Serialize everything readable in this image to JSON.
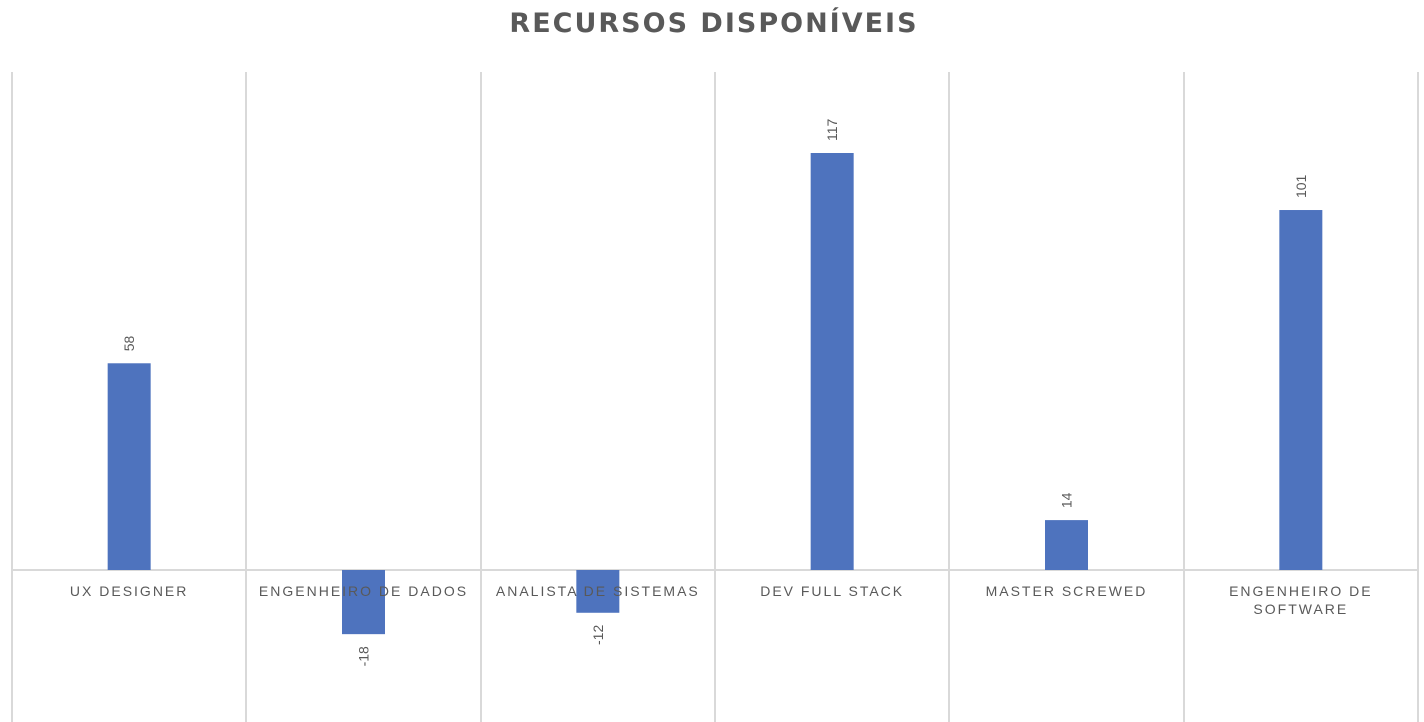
{
  "chart_data": {
    "type": "bar",
    "title": "RECURSOS DISPONÍVEIS",
    "categories": [
      "UX DESIGNER",
      "ENGENHEIRO DE DADOS",
      "ANALISTA DE SISTEMAS",
      "DEV FULL STACK",
      "MASTER SCREWED",
      "ENGENHEIRO DE SOFTWARE"
    ],
    "values": [
      58,
      -18,
      -12,
      117,
      14,
      101
    ],
    "data_labels": [
      "58",
      "-18",
      "-12",
      "117",
      "14",
      "101"
    ],
    "ylim": [
      -40,
      140
    ],
    "grid": "vertical",
    "legend": "none",
    "colors": {
      "bar": "#4e73be",
      "grid": "#d9d9d9",
      "text": "#595959"
    }
  }
}
